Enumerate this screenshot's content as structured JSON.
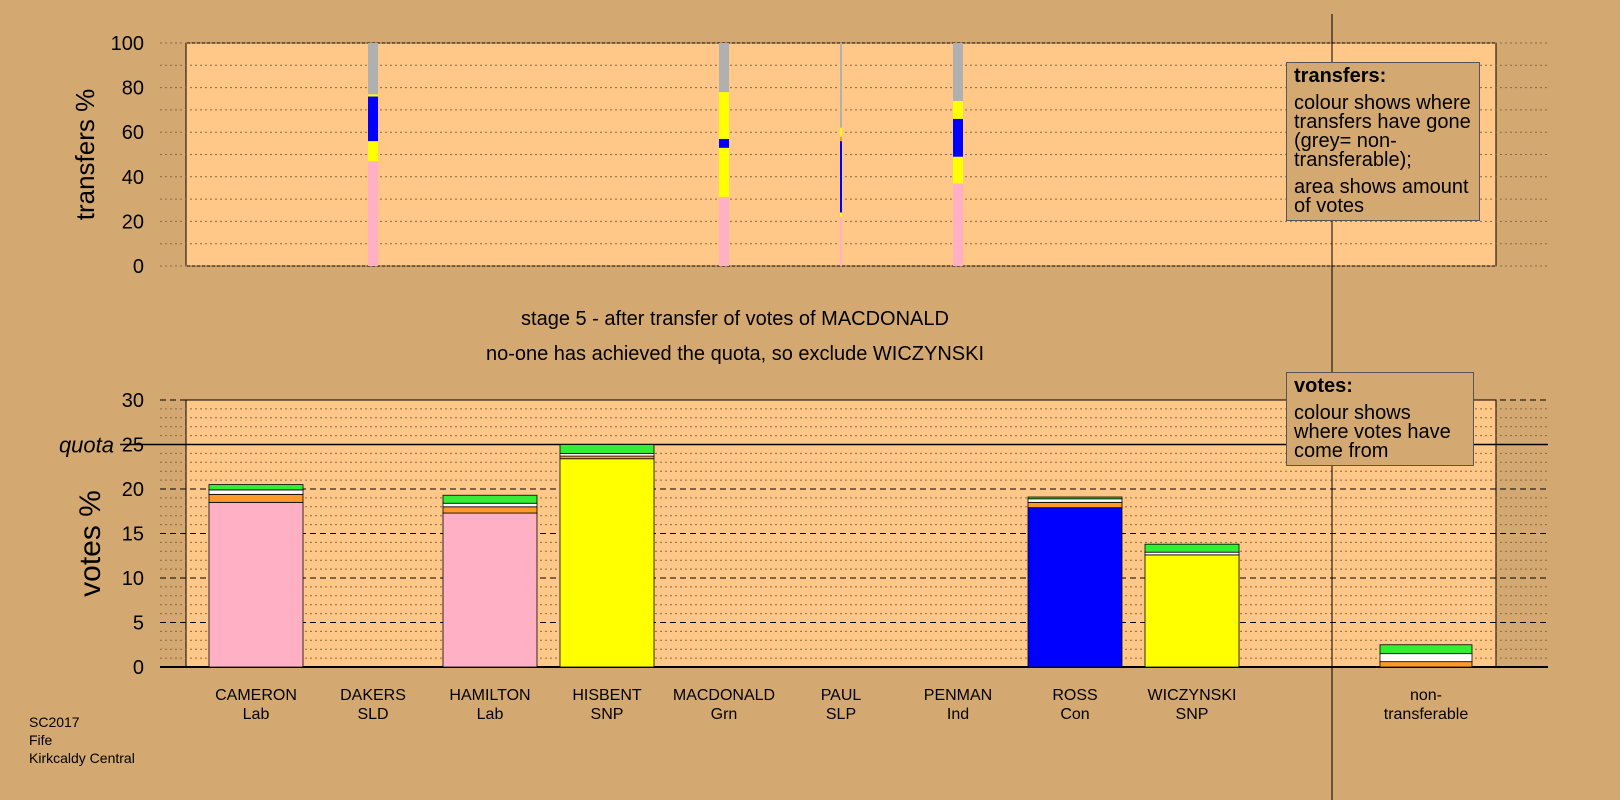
{
  "footer": {
    "election": "SC2017",
    "council": "Fife",
    "ward": "Kirkcaldy Central"
  },
  "stage_title": "stage 5 - after transfer of votes of MACDONALD",
  "stage_subtitle": "no-one has achieved the quota, so exclude WICZYNSKI",
  "quota_label": "quota",
  "legend_transfers": {
    "title": "transfers:",
    "line1": "colour shows where transfers have gone (grey= non-transferable);",
    "line2": "area shows amount of votes"
  },
  "legend_votes": {
    "title": "votes:",
    "line1": "colour shows where votes have come from"
  },
  "colors": {
    "Lab": "#ffb0c4",
    "SLD": "#ff9a2a",
    "SNP": "#ffff00",
    "Grn": "#33ee33",
    "SLP": "#ffffff",
    "Ind": "#ffffff",
    "Con": "#0000ff",
    "nontransferable": "#b0b0b0",
    "plot_bg": "#ffc888",
    "page_bg": "#d4a971"
  },
  "candidates": [
    {
      "name": "CAMERON",
      "party": "Lab"
    },
    {
      "name": "DAKERS",
      "party": "SLD"
    },
    {
      "name": "HAMILTON",
      "party": "Lab"
    },
    {
      "name": "HISBENT",
      "party": "SNP"
    },
    {
      "name": "MACDONALD",
      "party": "Grn"
    },
    {
      "name": "PAUL",
      "party": "SLP"
    },
    {
      "name": "PENMAN",
      "party": "Ind"
    },
    {
      "name": "ROSS",
      "party": "Con"
    },
    {
      "name": "WICZYNSKI",
      "party": "SNP"
    }
  ],
  "nontransferable_label": "non-transferable",
  "chart_data": [
    {
      "type": "bar",
      "ylabel": "transfers %",
      "ylim": [
        0,
        100
      ],
      "yticks": [
        0,
        20,
        40,
        60,
        80,
        100
      ],
      "categories": [
        "DAKERS",
        "MACDONALD",
        "PAUL",
        "PENMAN"
      ],
      "transfers": [
        {
          "candidate": "DAKERS",
          "segments": [
            {
              "to": "Lab",
              "value": 47
            },
            {
              "to": "SNP",
              "value": 9
            },
            {
              "to": "Con",
              "value": 20
            },
            {
              "to": "SNP",
              "value": 1
            },
            {
              "to": "nontransferable",
              "value": 23
            }
          ]
        },
        {
          "candidate": "MACDONALD",
          "segments": [
            {
              "to": "Lab",
              "value": 31
            },
            {
              "to": "SNP",
              "value": 22
            },
            {
              "to": "Con",
              "value": 4
            },
            {
              "to": "SNP",
              "value": 21
            },
            {
              "to": "nontransferable",
              "value": 22
            }
          ]
        },
        {
          "candidate": "PAUL",
          "segments": [
            {
              "to": "Lab",
              "value": 22
            },
            {
              "to": "SNP",
              "value": 2
            },
            {
              "to": "Con",
              "value": 32
            },
            {
              "to": "SLD",
              "value": 2
            },
            {
              "to": "SNP",
              "value": 4
            },
            {
              "to": "nontransferable",
              "value": 38
            }
          ]
        },
        {
          "candidate": "PENMAN",
          "segments": [
            {
              "to": "Lab",
              "value": 37
            },
            {
              "to": "SNP",
              "value": 12
            },
            {
              "to": "Con",
              "value": 17
            },
            {
              "to": "SNP",
              "value": 8
            },
            {
              "to": "nontransferable",
              "value": 26
            }
          ]
        }
      ]
    },
    {
      "type": "bar",
      "ylabel": "votes %",
      "ylim": [
        0,
        30
      ],
      "yticks": [
        0,
        5,
        10,
        15,
        20,
        25,
        30
      ],
      "quota": 25,
      "categories": [
        "CAMERON",
        "DAKERS",
        "HAMILTON",
        "HISBENT",
        "MACDONALD",
        "PAUL",
        "PENMAN",
        "ROSS",
        "WICZYNSKI",
        "non-transferable"
      ],
      "stacks": [
        {
          "candidate": "CAMERON",
          "segments": [
            {
              "from": "Lab",
              "value": 18.5
            },
            {
              "from": "SLD",
              "value": 0.9
            },
            {
              "from": "SLP",
              "value": 0.5
            },
            {
              "from": "Grn",
              "value": 0.6
            }
          ]
        },
        {
          "candidate": "DAKERS",
          "segments": []
        },
        {
          "candidate": "HAMILTON",
          "segments": [
            {
              "from": "Lab",
              "value": 17.3
            },
            {
              "from": "SLD",
              "value": 0.7
            },
            {
              "from": "SLP",
              "value": 0.4
            },
            {
              "from": "Grn",
              "value": 0.9
            }
          ]
        },
        {
          "candidate": "HISBENT",
          "segments": [
            {
              "from": "SNP",
              "value": 23.4
            },
            {
              "from": "SLD",
              "value": 0.3
            },
            {
              "from": "SLP",
              "value": 0.3
            },
            {
              "from": "Grn",
              "value": 1.0
            }
          ]
        },
        {
          "candidate": "MACDONALD",
          "segments": []
        },
        {
          "candidate": "PAUL",
          "segments": []
        },
        {
          "candidate": "PENMAN",
          "segments": []
        },
        {
          "candidate": "ROSS",
          "segments": [
            {
              "from": "Con",
              "value": 17.9
            },
            {
              "from": "SLD",
              "value": 0.6
            },
            {
              "from": "SLP",
              "value": 0.4
            },
            {
              "from": "Grn",
              "value": 0.2
            }
          ]
        },
        {
          "candidate": "WICZYNSKI",
          "segments": [
            {
              "from": "SNP",
              "value": 12.6
            },
            {
              "from": "SLP",
              "value": 0.3
            },
            {
              "from": "Grn",
              "value": 0.9
            }
          ]
        },
        {
          "candidate": "non-transferable",
          "segments": [
            {
              "from": "SLD",
              "value": 0.6
            },
            {
              "from": "SLP",
              "value": 0.9
            },
            {
              "from": "Grn",
              "value": 1.0
            }
          ]
        }
      ]
    }
  ]
}
